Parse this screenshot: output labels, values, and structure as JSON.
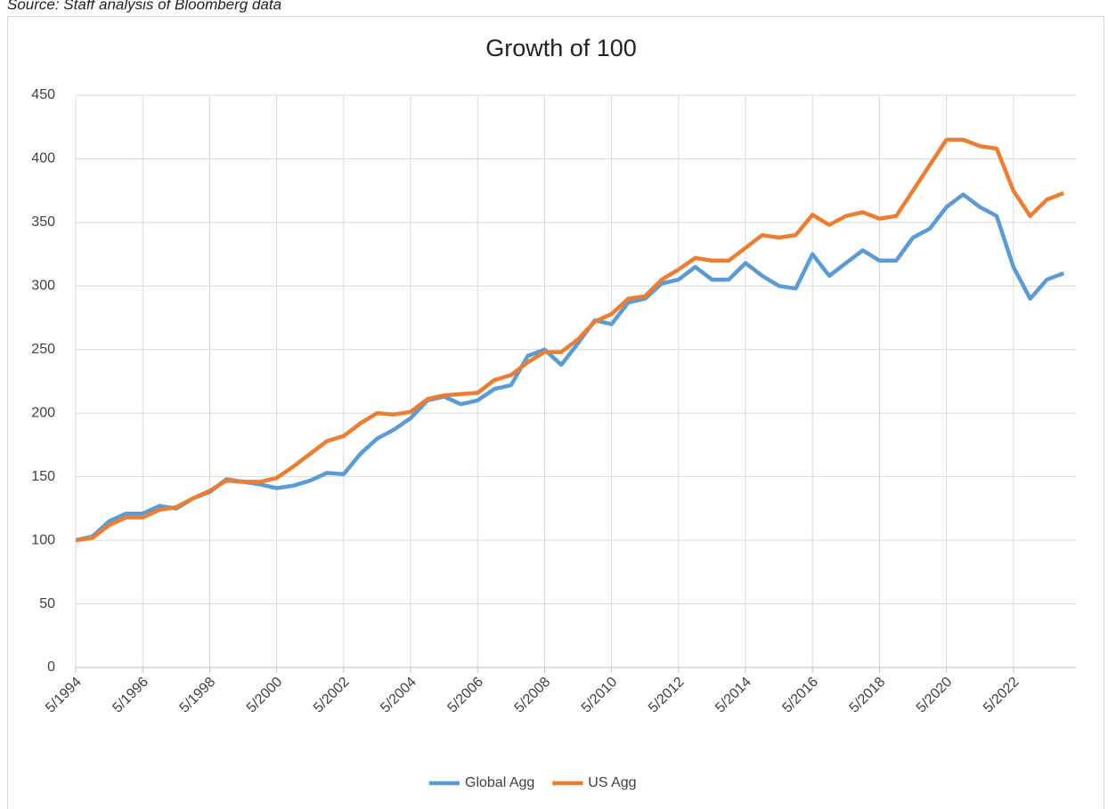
{
  "chart_data": {
    "type": "line",
    "source": "Source: Staff analysis of Bloomberg data",
    "title": "Growth of 100",
    "categories": [
      "5/1994",
      null,
      null,
      null,
      "5/1996",
      null,
      null,
      null,
      "5/1998",
      null,
      null,
      null,
      "5/2000",
      null,
      null,
      null,
      "5/2002",
      null,
      null,
      null,
      "5/2004",
      null,
      null,
      null,
      "5/2006",
      null,
      null,
      null,
      "5/2008",
      null,
      null,
      null,
      "5/2010",
      null,
      null,
      null,
      "5/2012",
      null,
      null,
      null,
      "5/2014",
      null,
      null,
      null,
      "5/2016",
      null,
      null,
      null,
      "5/2018",
      null,
      null,
      null,
      "5/2020",
      null,
      null,
      null,
      "5/2022",
      null,
      null,
      null
    ],
    "series": [
      {
        "name": "Global Agg",
        "color": "#5b9bd5",
        "values": [
          100,
          103,
          115,
          121,
          121,
          127,
          125,
          133,
          138,
          148,
          146,
          144,
          141,
          143,
          147,
          153,
          152,
          168,
          180,
          187,
          196,
          210,
          213,
          207,
          210,
          219,
          222,
          245,
          250,
          238,
          255,
          273,
          270,
          287,
          290,
          302,
          305,
          315,
          305,
          305,
          318,
          308,
          300,
          298,
          325,
          308,
          318,
          328,
          320,
          320,
          338,
          345,
          362,
          372,
          362,
          355,
          315,
          290,
          305,
          310
        ]
      },
      {
        "name": "US Agg",
        "color": "#ed7d31",
        "values": [
          100,
          102,
          112,
          118,
          118,
          124,
          126,
          133,
          139,
          147,
          146,
          146,
          149,
          158,
          168,
          178,
          182,
          192,
          200,
          199,
          201,
          211,
          214,
          215,
          216,
          226,
          230,
          240,
          248,
          248,
          258,
          272,
          278,
          290,
          292,
          305,
          313,
          322,
          320,
          320,
          330,
          340,
          338,
          340,
          356,
          348,
          355,
          358,
          353,
          355,
          375,
          395,
          415,
          415,
          410,
          408,
          375,
          355,
          368,
          373
        ]
      }
    ],
    "ylim": [
      0,
      450
    ],
    "yticks": [
      0,
      50,
      100,
      150,
      200,
      250,
      300,
      350,
      400,
      450
    ],
    "grid": true
  }
}
